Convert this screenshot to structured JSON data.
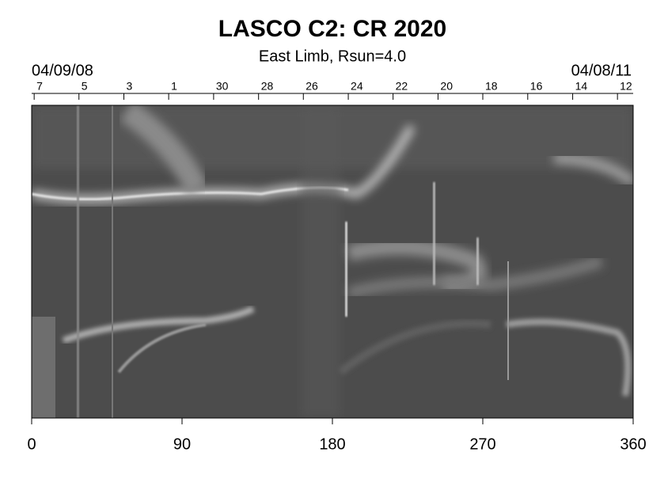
{
  "chart_data": {
    "type": "synoptic-map",
    "title": "LASCO C2: CR 2020",
    "subtitle": "East Limb, Rsun=4.0",
    "start_date": "04/09/08",
    "end_date": "04/08/11",
    "xlim": [
      0,
      360
    ],
    "xticks": [
      0,
      90,
      180,
      270,
      360
    ],
    "top_ticks": [
      {
        "value": 1.5,
        "label": "7"
      },
      {
        "value": 28.3,
        "label": "5"
      },
      {
        "value": 55.2,
        "label": "3"
      },
      {
        "value": 82.0,
        "label": "1"
      },
      {
        "value": 108.9,
        "label": "30"
      },
      {
        "value": 135.8,
        "label": "28"
      },
      {
        "value": 162.6,
        "label": "26"
      },
      {
        "value": 189.5,
        "label": "24"
      },
      {
        "value": 216.3,
        "label": "22"
      },
      {
        "value": 243.2,
        "label": "20"
      },
      {
        "value": 270.0,
        "label": "18"
      },
      {
        "value": 296.9,
        "label": "16"
      },
      {
        "value": 323.8,
        "label": "14"
      },
      {
        "value": 350.6,
        "label": "12"
      }
    ]
  }
}
